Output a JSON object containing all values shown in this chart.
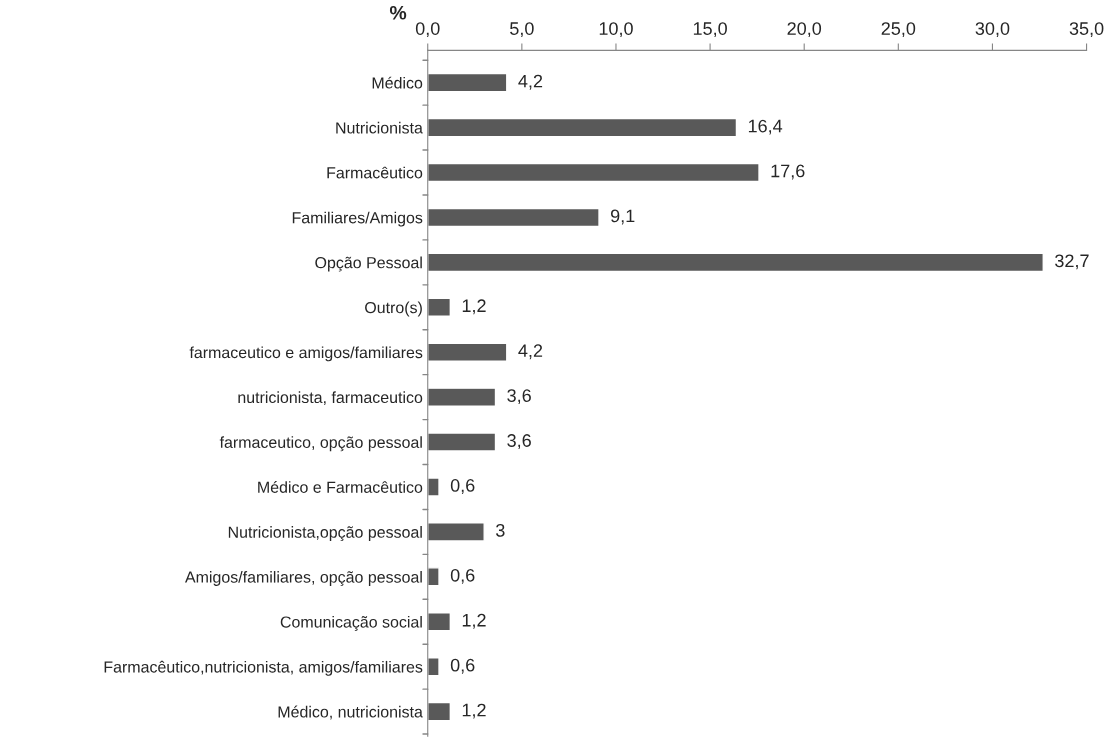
{
  "chart_data": {
    "type": "bar",
    "orientation": "horizontal",
    "xlabel": "%",
    "categories": [
      "Médico",
      "Nutricionista",
      "Farmacêutico",
      "Familiares/Amigos",
      "Opção Pessoal",
      "Outro(s)",
      "farmaceutico e amigos/familiares",
      "nutricionista, farmaceutico",
      "farmaceutico, opção pessoal",
      "Médico e Farmacêutico",
      "Nutricionista,opção pessoal",
      "Amigos/familiares, opção pessoal",
      "Comunicação social",
      "Farmacêutico,nutricionista, amigos/familiares",
      "Médico, nutricionista"
    ],
    "values": [
      4.2,
      16.4,
      17.6,
      9.1,
      32.7,
      1.2,
      4.2,
      3.6,
      3.6,
      0.6,
      3,
      0.6,
      1.2,
      0.6,
      1.2
    ],
    "value_labels": [
      "4,2",
      "16,4",
      "17,6",
      "9,1",
      "32,7",
      "1,2",
      "4,2",
      "3,6",
      "3,6",
      "0,6",
      "3",
      "0,6",
      "1,2",
      "0,6",
      "1,2"
    ],
    "color": "#595959",
    "xlim": [
      0,
      35
    ],
    "xticks": [
      {
        "value": 0,
        "label": "0,0"
      },
      {
        "value": 5,
        "label": "5,0"
      },
      {
        "value": 10,
        "label": "10,0"
      },
      {
        "value": 15,
        "label": "15,0"
      },
      {
        "value": 20,
        "label": "20,0"
      },
      {
        "value": 25,
        "label": "25,0"
      },
      {
        "value": 30,
        "label": "30,0"
      },
      {
        "value": 35,
        "label": "35,0"
      }
    ],
    "grid": false,
    "legend": false
  }
}
